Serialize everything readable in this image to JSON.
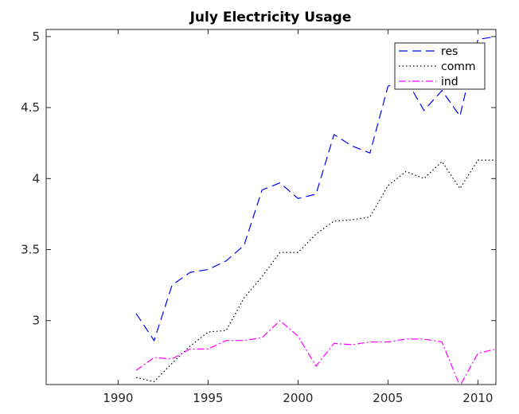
{
  "chart_data": {
    "type": "line",
    "title": "July Electricity Usage",
    "xlabel": "",
    "ylabel": "",
    "xlim": [
      1986,
      2011
    ],
    "ylim": [
      2.55,
      5.05
    ],
    "xticks": [
      1990,
      1995,
      2000,
      2005,
      2010
    ],
    "yticks": [
      3,
      3.5,
      4,
      4.5,
      5
    ],
    "xtick_labels": [
      "1990",
      "1995",
      "2000",
      "2005",
      "2010"
    ],
    "ytick_labels": [
      "3",
      "3.5",
      "4",
      "4.5",
      "5"
    ],
    "grid": false,
    "legend_position": "top-right",
    "x": [
      1991,
      1992,
      1993,
      1994,
      1995,
      1996,
      1997,
      1998,
      1999,
      2000,
      2001,
      2002,
      2003,
      2004,
      2005,
      2006,
      2007,
      2008,
      2009,
      2010,
      2011
    ],
    "series": [
      {
        "name": "res",
        "color": "#0000ff",
        "style": "dashed",
        "values": [
          3.05,
          2.86,
          3.25,
          3.34,
          3.36,
          3.42,
          3.53,
          3.92,
          3.97,
          3.86,
          3.89,
          4.31,
          4.23,
          4.18,
          4.65,
          4.7,
          4.48,
          4.62,
          4.44,
          4.98,
          5.0
        ]
      },
      {
        "name": "comm",
        "color": "#000000",
        "style": "dotted",
        "values": [
          2.6,
          2.57,
          2.7,
          2.82,
          2.92,
          2.93,
          3.16,
          3.31,
          3.48,
          3.48,
          3.61,
          3.7,
          3.71,
          3.73,
          3.95,
          4.05,
          4.0,
          4.12,
          3.93,
          4.13,
          4.13
        ]
      },
      {
        "name": "ind",
        "color": "#ff00ff",
        "style": "dashdot",
        "values": [
          2.65,
          2.74,
          2.73,
          2.8,
          2.8,
          2.86,
          2.86,
          2.88,
          3.0,
          2.89,
          2.68,
          2.84,
          2.83,
          2.85,
          2.85,
          2.87,
          2.87,
          2.85,
          2.54,
          2.77,
          2.8
        ]
      }
    ]
  }
}
